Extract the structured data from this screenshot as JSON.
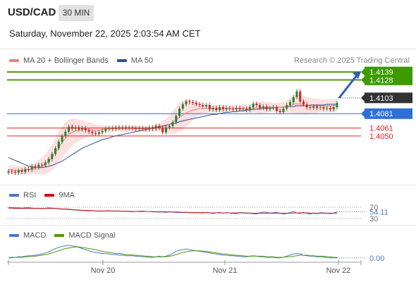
{
  "header": {
    "symbol": "USD/CAD",
    "timeframe": "30 MIN",
    "datetime": "Saturday, November 22, 2025 2:03:54 AM CET"
  },
  "credit": "Research © 2025 Trading Central",
  "colors": {
    "green_level": "#4e9a06",
    "green_tag": "#3d9b00",
    "blue_level": "#2e6fd8",
    "red_level": "#e02020",
    "pivot_tag": "#333333",
    "ma20": "#f08080",
    "bollinger_fill": "#fde0e0",
    "ma50": "#2f5597",
    "candle_up": "#2e7d32",
    "candle_down": "#c62828",
    "rsi": "#4a78c8",
    "rsi_9ma": "#d01010",
    "macd": "#4a78c8",
    "macd_signal": "#4e9a06"
  },
  "panels": {
    "price_legend": [
      {
        "label": "MA 20 + Bollinger Bands",
        "color": "#f08080"
      },
      {
        "label": "MA 50",
        "color": "#2f5597"
      }
    ],
    "rsi_legend": [
      {
        "label": "RSI",
        "color": "#4a78c8"
      },
      {
        "label": "9MA",
        "color": "#d01010"
      }
    ],
    "macd_legend": [
      {
        "label": "MACD",
        "color": "#4a78c8"
      },
      {
        "label": "MACD Signal",
        "color": "#4e9a06"
      }
    ]
  },
  "chart_data": [
    {
      "type": "candlestick",
      "panel": "price",
      "x_tick_labels": [
        "Nov 20",
        "Nov 21",
        "Nov 22"
      ],
      "ylim": [
        1.399,
        1.4145
      ],
      "levels": [
        {
          "label": "1.4139",
          "value": 1.4139,
          "kind": "resistance",
          "color": "#4e9a06",
          "tag": true
        },
        {
          "label": "1.4128",
          "value": 1.4128,
          "kind": "resistance",
          "color": "#4e9a06",
          "tag": true
        },
        {
          "label": "1.4103",
          "value": 1.4103,
          "kind": "pivot",
          "color": "#333333",
          "tag": true
        },
        {
          "label": "1.4081",
          "value": 1.4081,
          "kind": "support",
          "color": "#2e6fd8",
          "tag": true
        },
        {
          "label": "1.4061",
          "value": 1.4061,
          "kind": "support",
          "color": "#e02020",
          "tag": false
        },
        {
          "label": "1.4050",
          "value": 1.405,
          "kind": "support",
          "color": "#e02020",
          "tag": false
        }
      ],
      "close_series": [
        1.4001,
        1.4,
        1.3999,
        1.4002,
        1.4,
        1.4004,
        1.4003,
        1.4008,
        1.4006,
        1.401,
        1.4009,
        1.4013,
        1.4018,
        1.4025,
        1.4033,
        1.4042,
        1.405,
        1.4056,
        1.4063,
        1.406,
        1.4062,
        1.4059,
        1.4061,
        1.4058,
        1.4056,
        1.4054,
        1.4053,
        1.4055,
        1.4057,
        1.406,
        1.4061,
        1.406,
        1.4062,
        1.4061,
        1.4062,
        1.4061,
        1.4062,
        1.4061,
        1.406,
        1.4061,
        1.406,
        1.4059,
        1.4062,
        1.406,
        1.4064,
        1.4061,
        1.4055,
        1.4062,
        1.4064,
        1.4069,
        1.4078,
        1.4088,
        1.4094,
        1.4098,
        1.4097,
        1.4096,
        1.4094,
        1.4093,
        1.4091,
        1.4093,
        1.4087,
        1.4089,
        1.4086,
        1.409,
        1.4087,
        1.4089,
        1.4088,
        1.4087,
        1.4089,
        1.4087,
        1.4088,
        1.4086,
        1.409,
        1.4095,
        1.4093,
        1.4089,
        1.4091,
        1.4087,
        1.4089,
        1.409,
        1.4085,
        1.4083,
        1.4088,
        1.4093,
        1.4097,
        1.4104,
        1.4112,
        1.4098,
        1.4094,
        1.409,
        1.4089,
        1.4091,
        1.4089,
        1.409,
        1.4088,
        1.4089,
        1.4087,
        1.409,
        1.4096
      ],
      "ma20_series": [
        1.4003,
        1.4003,
        1.4002,
        1.4002,
        1.4002,
        1.4003,
        1.4003,
        1.4004,
        1.4005,
        1.4007,
        1.4008,
        1.4011,
        1.4015,
        1.402,
        1.4027,
        1.4034,
        1.4041,
        1.4047,
        1.4052,
        1.4055,
        1.4057,
        1.4058,
        1.4059,
        1.4059,
        1.4059,
        1.4058,
        1.4058,
        1.4058,
        1.4059,
        1.406,
        1.406,
        1.406,
        1.406,
        1.406,
        1.406,
        1.406,
        1.406,
        1.406,
        1.406,
        1.406,
        1.406,
        1.406,
        1.406,
        1.406,
        1.4061,
        1.4062,
        1.4063,
        1.4064,
        1.4066,
        1.4069,
        1.4072,
        1.4076,
        1.4079,
        1.4082,
        1.4084,
        1.4086,
        1.4087,
        1.4088,
        1.4088,
        1.4088,
        1.4088,
        1.4088,
        1.4088,
        1.4088,
        1.4088,
        1.4088,
        1.4088,
        1.4088,
        1.4088,
        1.4088,
        1.4088,
        1.4088,
        1.4088,
        1.4089,
        1.4089,
        1.4089,
        1.409,
        1.409,
        1.409,
        1.409,
        1.409,
        1.409,
        1.409,
        1.4091,
        1.4092,
        1.4094,
        1.4095,
        1.4094,
        1.4093,
        1.4092,
        1.4092,
        1.4092,
        1.4092,
        1.4092,
        1.4092,
        1.4092,
        1.4092,
        1.4092,
        1.4093
      ],
      "ma50_series": [
        1.402,
        1.4018,
        1.4016,
        1.4014,
        1.4012,
        1.401,
        1.4008,
        1.4007,
        1.4006,
        1.4006,
        1.4006,
        1.4007,
        1.4008,
        1.4009,
        1.4011,
        1.4013,
        1.4015,
        1.4018,
        1.4021,
        1.4024,
        1.4027,
        1.403,
        1.4033,
        1.4035,
        1.4037,
        1.4039,
        1.4041,
        1.4043,
        1.4045,
        1.4046,
        1.4047,
        1.4049,
        1.405,
        1.4051,
        1.4052,
        1.4053,
        1.4054,
        1.4055,
        1.4056,
        1.4057,
        1.4058,
        1.4059,
        1.406,
        1.4061,
        1.4062,
        1.4063,
        1.4064,
        1.4065,
        1.4066,
        1.4067,
        1.4068,
        1.407,
        1.4071,
        1.4072,
        1.4073,
        1.4074,
        1.4075,
        1.4076,
        1.4077,
        1.4078,
        1.4079,
        1.408,
        1.408,
        1.4081,
        1.4082,
        1.4083,
        1.4083,
        1.4084,
        1.4084,
        1.4085,
        1.4085,
        1.4086,
        1.4086,
        1.4087,
        1.4087,
        1.4088,
        1.4088,
        1.4089,
        1.4089,
        1.4089,
        1.409,
        1.409,
        1.409,
        1.4091,
        1.4091,
        1.4091,
        1.4092,
        1.4092,
        1.4092,
        1.4092,
        1.4093,
        1.4093,
        1.4093,
        1.4093,
        1.4093,
        1.4094,
        1.4094,
        1.4094,
        1.4094
      ],
      "bollinger_halfwidth": [
        6,
        6,
        6,
        6,
        6,
        6,
        6,
        7,
        8,
        10,
        12,
        14,
        16,
        18,
        20,
        22,
        22,
        22,
        21,
        19,
        17,
        15,
        13,
        11,
        10,
        9,
        8,
        7,
        6,
        5,
        4,
        4,
        4,
        4,
        4,
        4,
        4,
        4,
        4,
        4,
        4,
        4,
        4,
        4,
        5,
        6,
        8,
        10,
        13,
        16,
        18,
        20,
        20,
        19,
        17,
        14,
        11,
        9,
        7,
        6,
        5,
        5,
        5,
        5,
        5,
        5,
        5,
        5,
        5,
        5,
        5,
        5,
        6,
        6,
        7,
        8,
        8,
        7,
        7,
        6,
        6,
        6,
        7,
        8,
        10,
        12,
        14,
        14,
        13,
        12,
        11,
        10,
        10,
        9,
        9,
        9,
        9,
        9,
        9
      ],
      "forecast_arrow": {
        "from": 1.4103,
        "to": 1.4139
      }
    },
    {
      "type": "line",
      "panel": "rsi",
      "y_tick_labels": [
        "70",
        "30"
      ],
      "current_label": "54.11",
      "ylim": [
        20,
        85
      ],
      "series": [
        {
          "name": "RSI",
          "values": [
            70,
            69,
            68,
            68,
            67,
            68,
            69,
            67,
            66,
            66,
            65,
            66,
            68,
            67,
            66,
            64,
            63,
            63,
            62,
            61,
            60,
            59,
            58,
            58,
            57,
            58,
            57,
            56,
            57,
            57,
            58,
            56,
            57,
            57,
            56,
            56,
            55,
            54,
            55,
            56,
            57,
            55,
            55,
            54,
            53,
            53,
            53,
            52,
            54,
            53,
            51,
            52,
            51,
            53,
            50,
            51,
            50,
            51,
            49,
            52,
            50,
            48,
            50,
            52,
            49,
            51,
            50,
            48,
            47,
            51,
            51,
            50,
            49,
            47,
            46,
            51,
            53,
            52,
            49,
            51,
            52,
            49,
            46,
            48,
            52,
            55,
            50,
            48,
            52,
            48,
            46,
            50,
            47,
            51,
            50,
            49,
            47,
            50,
            54
          ]
        },
        {
          "name": "9MA",
          "values": [
            67,
            67,
            66,
            66,
            66,
            66,
            66,
            66,
            66,
            66,
            66,
            66,
            66,
            66,
            66,
            65,
            64,
            64,
            63,
            62,
            61,
            60,
            59,
            59,
            58,
            58,
            57,
            57,
            57,
            57,
            57,
            57,
            57,
            56,
            56,
            56,
            56,
            55,
            55,
            55,
            55,
            55,
            55,
            55,
            54,
            54,
            54,
            54,
            53,
            53,
            53,
            53,
            52,
            52,
            51,
            51,
            51,
            51,
            51,
            51,
            50,
            50,
            50,
            50,
            50,
            50,
            50,
            50,
            50,
            50,
            50,
            49,
            49,
            49,
            49,
            49,
            49,
            49,
            49,
            49,
            49,
            49,
            49,
            49,
            49,
            50,
            50,
            50,
            50,
            50,
            49,
            49,
            49,
            49,
            49,
            49,
            49,
            49,
            49
          ]
        }
      ]
    },
    {
      "type": "line",
      "panel": "macd",
      "current_label": "0.00",
      "ylim": [
        -0.0008,
        0.0028
      ],
      "series": [
        {
          "name": "MACD",
          "values": [
            0.0,
            0.0001,
            0.0001,
            0.0002,
            0.0002,
            0.0003,
            0.0004,
            0.0004,
            0.0005,
            0.0006,
            0.0007,
            0.0009,
            0.0011,
            0.0014,
            0.0017,
            0.0019,
            0.0021,
            0.0022,
            0.0023,
            0.0022,
            0.0021,
            0.0019,
            0.0017,
            0.0015,
            0.0013,
            0.0011,
            0.001,
            0.0009,
            0.0008,
            0.0008,
            0.0007,
            0.0006,
            0.0006,
            0.0005,
            0.0005,
            0.0004,
            0.0004,
            0.0004,
            0.0003,
            0.0003,
            0.0002,
            0.0002,
            0.0001,
            0.0001,
            0.0002,
            0.0003,
            0.0002,
            0.0003,
            0.0005,
            0.0008,
            0.0012,
            0.0014,
            0.0015,
            0.0016,
            0.0015,
            0.0014,
            0.0013,
            0.0012,
            0.0011,
            0.001,
            0.0009,
            0.0008,
            0.0007,
            0.0006,
            0.0005,
            0.0005,
            0.0004,
            0.0004,
            0.0003,
            0.0003,
            0.0002,
            0.0002,
            0.0003,
            0.0004,
            0.0003,
            0.0002,
            0.0002,
            0.0001,
            0.0001,
            0.0001,
            0.0,
            0.0,
            0.0001,
            0.0003,
            0.0005,
            0.0007,
            0.0008,
            0.0007,
            0.0005,
            0.0004,
            0.0003,
            0.0003,
            0.0002,
            0.0002,
            0.0001,
            0.0001,
            0.0,
            0.0,
            0.0
          ]
        },
        {
          "name": "MACD Signal",
          "values": [
            0.0,
            0.0,
            0.0001,
            0.0001,
            0.0001,
            0.0002,
            0.0002,
            0.0003,
            0.0003,
            0.0004,
            0.0005,
            0.0006,
            0.0007,
            0.0009,
            0.0011,
            0.0013,
            0.0015,
            0.0017,
            0.0018,
            0.0019,
            0.002,
            0.002,
            0.0019,
            0.0018,
            0.0017,
            0.0016,
            0.0015,
            0.0013,
            0.0012,
            0.0011,
            0.001,
            0.0009,
            0.0008,
            0.0008,
            0.0007,
            0.0006,
            0.0006,
            0.0005,
            0.0005,
            0.0004,
            0.0004,
            0.0003,
            0.0003,
            0.0002,
            0.0002,
            0.0002,
            0.0002,
            0.0002,
            0.0003,
            0.0004,
            0.0006,
            0.0008,
            0.001,
            0.0011,
            0.0012,
            0.0013,
            0.0013,
            0.0013,
            0.0012,
            0.0012,
            0.0011,
            0.001,
            0.0009,
            0.0008,
            0.0007,
            0.0007,
            0.0006,
            0.0005,
            0.0005,
            0.0004,
            0.0004,
            0.0003,
            0.0003,
            0.0003,
            0.0003,
            0.0003,
            0.0003,
            0.0002,
            0.0002,
            0.0002,
            0.0001,
            0.0001,
            0.0001,
            0.0002,
            0.0002,
            0.0003,
            0.0004,
            0.0005,
            0.0005,
            0.0005,
            0.0004,
            0.0004,
            0.0003,
            0.0003,
            0.0003,
            0.0002,
            0.0002,
            0.0001,
            0.0001
          ]
        }
      ]
    }
  ]
}
